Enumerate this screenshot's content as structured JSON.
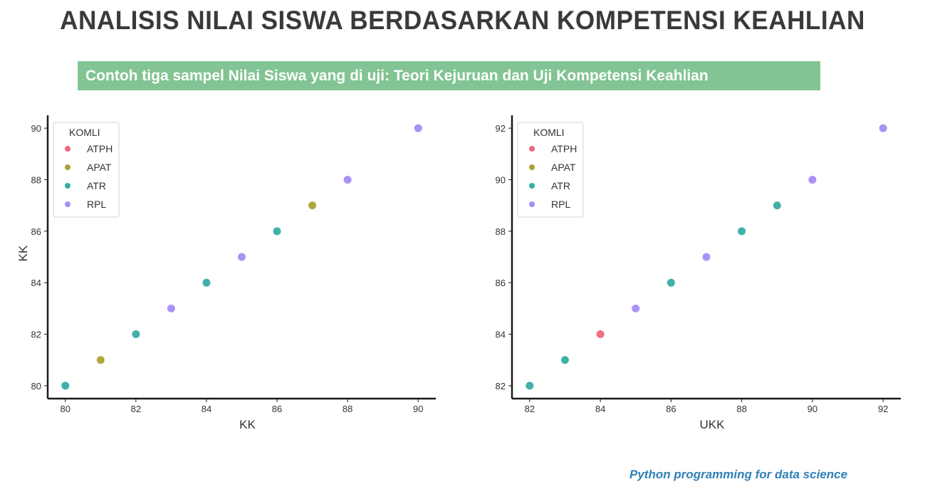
{
  "page": {
    "title": "ANALISIS NILAI SISWA BERDASARKAN KOMPETENSI KEAHLIAN",
    "banner": "Contoh tiga sampel Nilai Siswa yang di uji: Teori Kejuruan dan Uji Kompetensi Keahlian",
    "footer": "Python programming for data science",
    "banner_color": "#82c493",
    "footer_color": "#2f7fb5"
  },
  "chart_data": [
    {
      "type": "scatter",
      "xlabel": "KK",
      "ylabel": "KK",
      "xlim": [
        79.5,
        90.5
      ],
      "ylim": [
        79.5,
        90.5
      ],
      "xticks": [
        80,
        82,
        84,
        86,
        88,
        90
      ],
      "yticks": [
        80,
        82,
        84,
        86,
        88,
        90
      ],
      "legend_title": "KOMLI",
      "legend_position": "top-left",
      "grid": false,
      "series": [
        {
          "name": "ATPH",
          "color": "#f0687a",
          "points": []
        },
        {
          "name": "APAT",
          "color": "#a8a333",
          "points": [
            [
              81,
              81
            ],
            [
              87,
              87
            ]
          ]
        },
        {
          "name": "ATR",
          "color": "#36ada4",
          "points": [
            [
              80,
              80
            ],
            [
              82,
              82
            ],
            [
              84,
              84
            ],
            [
              86,
              86
            ]
          ]
        },
        {
          "name": "RPL",
          "color": "#a48cf4",
          "points": [
            [
              83,
              83
            ],
            [
              85,
              85
            ],
            [
              88,
              88
            ],
            [
              90,
              90
            ]
          ]
        }
      ]
    },
    {
      "type": "scatter",
      "xlabel": "UKK",
      "ylabel": "",
      "xlim": [
        81.5,
        92.5
      ],
      "ylim": [
        81.5,
        92.5
      ],
      "xticks": [
        82,
        84,
        86,
        88,
        90,
        92
      ],
      "yticks": [
        82,
        84,
        86,
        88,
        90,
        92
      ],
      "legend_title": "KOMLI",
      "legend_position": "top-left",
      "grid": false,
      "series": [
        {
          "name": "ATPH",
          "color": "#f0687a",
          "points": [
            [
              84,
              84
            ]
          ]
        },
        {
          "name": "APAT",
          "color": "#a8a333",
          "points": []
        },
        {
          "name": "ATR",
          "color": "#36ada4",
          "points": [
            [
              82,
              82
            ],
            [
              83,
              83
            ],
            [
              86,
              86
            ],
            [
              88,
              88
            ],
            [
              89,
              89
            ]
          ]
        },
        {
          "name": "RPL",
          "color": "#a48cf4",
          "points": [
            [
              85,
              85
            ],
            [
              87,
              87
            ],
            [
              90,
              90
            ],
            [
              92,
              92
            ]
          ]
        }
      ]
    }
  ]
}
